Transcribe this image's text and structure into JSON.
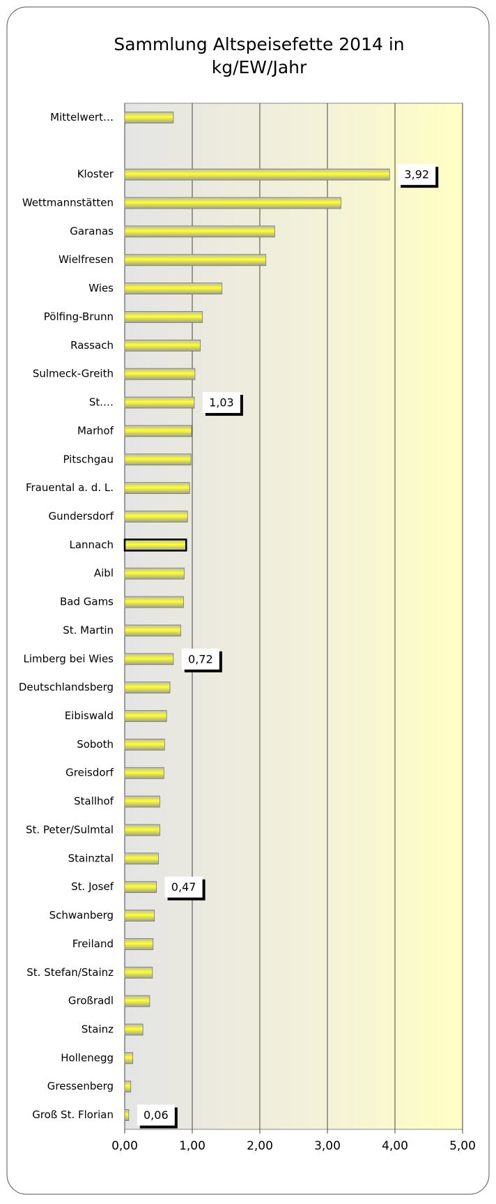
{
  "chart_data": {
    "type": "hbar",
    "title": [
      "Sammlung Altspeisefette 2014 in",
      "kg/EW/Jahr"
    ],
    "categories": [
      "Mittelwert…",
      null,
      "Kloster",
      "Wettmannstätten",
      "Garanas",
      "Wielfresen",
      "Wies",
      "Pölfing-Brunn",
      "Rassach",
      "Sulmeck-Greith",
      "St.…",
      "Marhof",
      "Pitschgau",
      "Frauental a. d. L.",
      "Gundersdorf",
      "Lannach",
      "Aibl",
      "Bad Gams",
      "St. Martin",
      "Limberg bei Wies",
      "Deutschlandsberg",
      "Eibiswald",
      "Soboth",
      "Greisdorf",
      "Stallhof",
      "St. Peter/Sulmtal",
      "Stainztal",
      "St. Josef",
      "Schwanberg",
      "Freiland",
      "St. Stefan/Stainz",
      "Großradl",
      "Stainz",
      "Hollenegg",
      "Gressenberg",
      "Groß St. Florian"
    ],
    "values": [
      0.72,
      null,
      3.92,
      3.2,
      2.22,
      2.09,
      1.44,
      1.15,
      1.12,
      1.04,
      1.03,
      0.99,
      0.98,
      0.96,
      0.93,
      0.91,
      0.88,
      0.87,
      0.83,
      0.72,
      0.67,
      0.62,
      0.59,
      0.58,
      0.52,
      0.52,
      0.5,
      0.47,
      0.44,
      0.42,
      0.41,
      0.37,
      0.27,
      0.12,
      0.09,
      0.06
    ],
    "value_labels": [
      null,
      null,
      "3,92",
      null,
      null,
      null,
      null,
      null,
      null,
      null,
      "1,03",
      null,
      null,
      null,
      null,
      null,
      null,
      null,
      null,
      "0,72",
      null,
      null,
      null,
      null,
      null,
      null,
      null,
      "0,47",
      null,
      null,
      null,
      null,
      null,
      null,
      null,
      "0,06"
    ],
    "highlight_category": "Lannach",
    "color": "#ffff33",
    "xlim": [
      0,
      5
    ],
    "xticks": [
      {
        "value": 0,
        "label": "0,00"
      },
      {
        "value": 1,
        "label": "1,00"
      },
      {
        "value": 2,
        "label": "2,00"
      },
      {
        "value": 3,
        "label": "3,00"
      },
      {
        "value": 4,
        "label": "4,00"
      },
      {
        "value": 5,
        "label": "5,00"
      }
    ],
    "grid": true
  }
}
